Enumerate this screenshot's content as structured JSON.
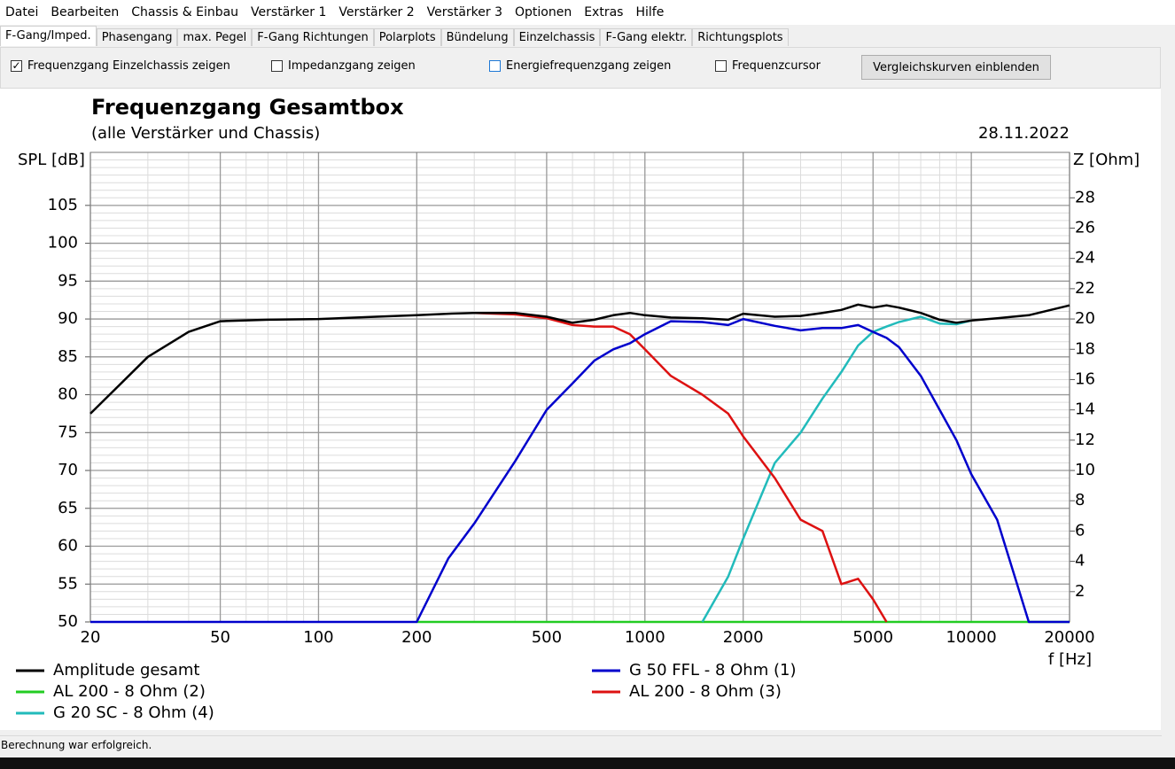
{
  "menu": [
    "Datei",
    "Bearbeiten",
    "Chassis & Einbau",
    "Verstärker 1",
    "Verstärker 2",
    "Verstärker 3",
    "Optionen",
    "Extras",
    "Hilfe"
  ],
  "tabs": [
    {
      "label": "F-Gang/Imped.",
      "selected": true
    },
    {
      "label": "Phasengang",
      "selected": false
    },
    {
      "label": "max. Pegel",
      "selected": false
    },
    {
      "label": "F-Gang Richtungen",
      "selected": false
    },
    {
      "label": "Polarplots",
      "selected": false
    },
    {
      "label": "Bündelung",
      "selected": false
    },
    {
      "label": "Einzelchassis",
      "selected": false
    },
    {
      "label": "F-Gang elektr.",
      "selected": false
    },
    {
      "label": "Richtungsplots",
      "selected": false
    }
  ],
  "options": [
    {
      "label": "Frequenzgang Einzelchassis zeigen",
      "checked": true
    },
    {
      "label": "Impedanzgang zeigen",
      "checked": false
    },
    {
      "label": "Energiefrequenzgang zeigen",
      "checked": false
    },
    {
      "label": "Frequenzcursor",
      "checked": false
    }
  ],
  "button": "Vergleichskurven einblenden",
  "chart_data": {
    "type": "line",
    "title": "Frequenzgang Gesamtbox",
    "subtitle": "(alle Verstärker und Chassis)",
    "date": "28.11.2022",
    "ylabel": "SPL [dB]",
    "y2label": "Z [Ohm]",
    "xlabel": "f [Hz]",
    "xscale": "log",
    "xlim": [
      20,
      20000
    ],
    "xticks": [
      20,
      50,
      100,
      200,
      500,
      1000,
      2000,
      5000,
      10000,
      20000
    ],
    "ylim": [
      50,
      112
    ],
    "yticks": [
      50,
      55,
      60,
      65,
      70,
      75,
      80,
      85,
      90,
      95,
      100,
      105
    ],
    "y2lim": [
      0,
      31
    ],
    "y2ticks": [
      2,
      4,
      6,
      8,
      10,
      12,
      14,
      16,
      18,
      20,
      22,
      24,
      26,
      28
    ],
    "grid": true,
    "x": [
      20,
      30,
      40,
      50,
      70,
      100,
      150,
      200,
      250,
      300,
      400,
      500,
      600,
      700,
      800,
      900,
      1000,
      1200,
      1500,
      1800,
      2000,
      2500,
      3000,
      3500,
      4000,
      4500,
      5000,
      5500,
      6000,
      7000,
      8000,
      9000,
      10000,
      12000,
      15000,
      20000
    ],
    "series": [
      {
        "name": "Amplitude gesamt",
        "color": "#000000",
        "values": [
          77.5,
          85,
          88.3,
          89.7,
          89.9,
          90,
          90.3,
          90.5,
          90.7,
          90.8,
          90.8,
          90.3,
          89.5,
          89.9,
          90.5,
          90.8,
          90.5,
          90.2,
          90.1,
          89.9,
          90.7,
          90.3,
          90.4,
          90.8,
          91.2,
          91.9,
          91.5,
          91.8,
          91.5,
          90.8,
          89.9,
          89.5,
          89.8,
          90.1,
          90.5,
          91.8
        ]
      },
      {
        "name": "G 50 FFL - 8 Ohm (1)",
        "color": "#0000cc",
        "values": [
          50,
          50,
          50,
          50,
          50,
          50,
          50,
          50,
          58.4,
          63,
          71.2,
          78,
          81.5,
          84.5,
          86,
          86.8,
          88,
          89.7,
          89.6,
          89.2,
          90,
          89.1,
          88.5,
          88.8,
          88.8,
          89.2,
          88.3,
          87.5,
          86.3,
          82.5,
          78,
          74,
          69.5,
          63.5,
          50,
          50
        ]
      },
      {
        "name": "AL 200 - 8 Ohm (2)",
        "color": "#22cc22",
        "values": [
          null,
          null,
          null,
          null,
          null,
          null,
          null,
          50,
          50,
          50,
          50,
          50,
          50,
          50,
          50,
          50,
          50,
          50,
          50,
          50,
          50,
          50,
          50,
          50,
          50,
          50,
          50,
          50,
          50,
          50,
          50,
          50,
          50,
          50,
          50,
          50
        ]
      },
      {
        "name": "AL 200 - 8 Ohm (3)",
        "color": "#dd1111",
        "values": [
          null,
          null,
          null,
          null,
          null,
          null,
          null,
          null,
          null,
          90.8,
          90.6,
          90.1,
          89.2,
          89,
          89,
          88,
          86,
          82.5,
          80,
          77.5,
          74.5,
          69,
          63.5,
          62,
          55,
          55.7,
          53,
          50,
          null,
          null,
          null,
          null,
          null,
          null,
          null,
          null
        ]
      },
      {
        "name": "G 20 SC - 8 Ohm (4)",
        "color": "#22bbbb",
        "values": [
          null,
          null,
          null,
          null,
          null,
          null,
          null,
          null,
          null,
          null,
          null,
          null,
          null,
          null,
          null,
          null,
          null,
          null,
          50,
          56,
          61,
          71,
          75,
          79.5,
          83,
          86.5,
          88.3,
          89,
          89.6,
          90.3,
          89.4,
          89.3,
          89.8,
          null,
          null,
          null
        ]
      }
    ]
  },
  "status": "Berechnung war erfolgreich."
}
